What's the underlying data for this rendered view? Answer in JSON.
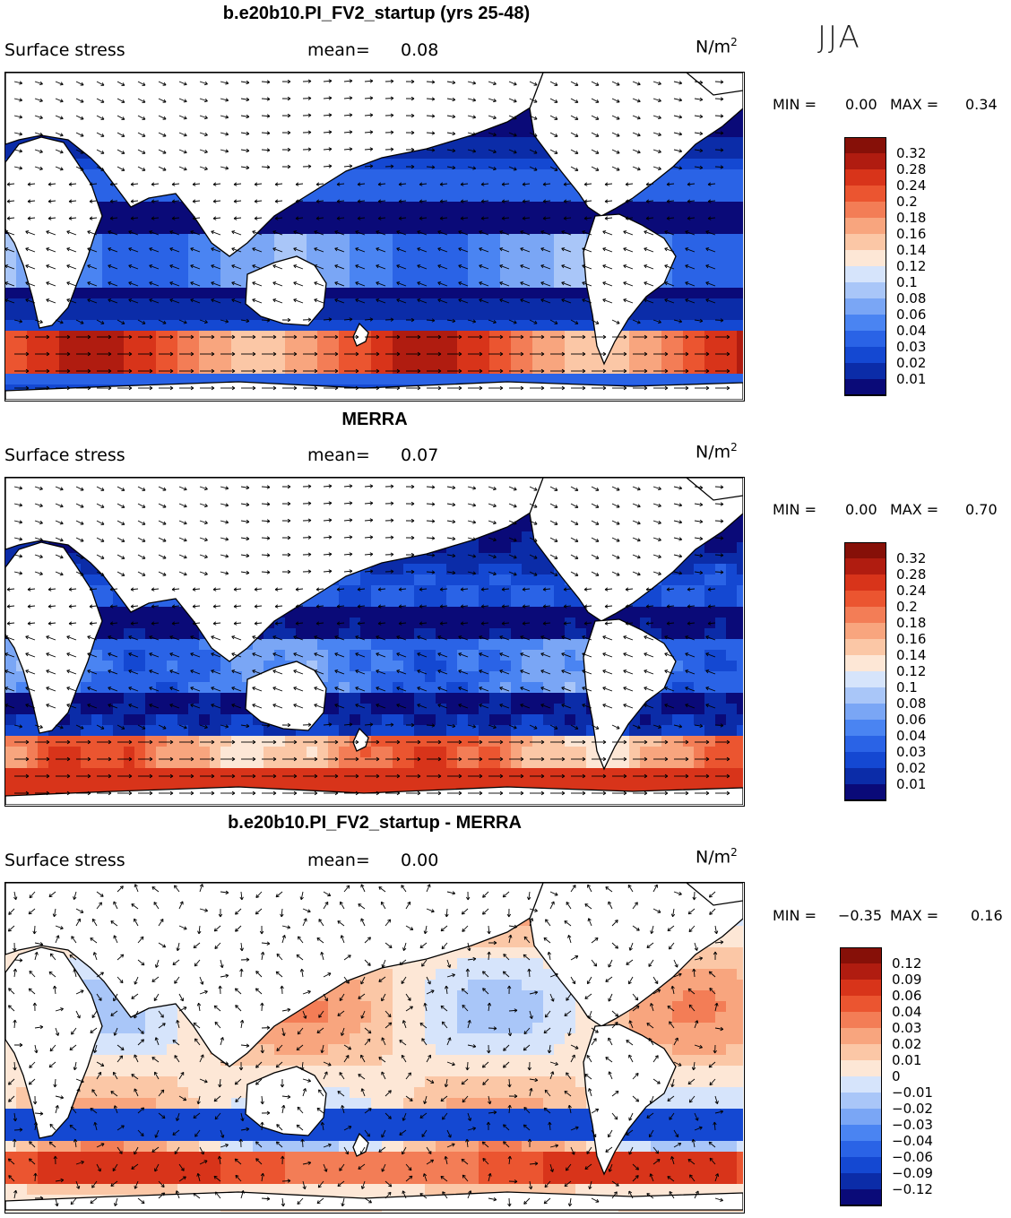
{
  "season": "JJA",
  "panels": [
    {
      "id": "model",
      "title": "b.e20b10.PI_FV2_startup (yrs 25-48)",
      "variable": "Surface stress",
      "mean_label": "mean=",
      "mean_value": "0.08",
      "units_base": "N/m",
      "units_exp": "2",
      "min_label": "MIN =",
      "min_value": "0.00",
      "max_label": "MAX =",
      "max_value": "0.34",
      "colorbar": {
        "colors": [
          "#0a0a78",
          "#0b2ca8",
          "#1448d2",
          "#2a63e6",
          "#4a84f2",
          "#7aa6f5",
          "#a9c6f8",
          "#d6e4fb",
          "#fde7d6",
          "#fbc7a6",
          "#f8a57e",
          "#f37d56",
          "#eb5530",
          "#d8341a",
          "#b01c10",
          "#861008"
        ],
        "labels": [
          "0.32",
          "0.28",
          "0.24",
          "0.2",
          "0.18",
          "0.16",
          "0.14",
          "0.12",
          "0.1",
          "0.08",
          "0.06",
          "0.04",
          "0.03",
          "0.02",
          "0.01"
        ]
      }
    },
    {
      "id": "obs",
      "title": "MERRA",
      "variable": "Surface stress",
      "mean_label": "mean=",
      "mean_value": "0.07",
      "units_base": "N/m",
      "units_exp": "2",
      "min_label": "MIN =",
      "min_value": "0.00",
      "max_label": "MAX =",
      "max_value": "0.70",
      "colorbar": {
        "colors": [
          "#0a0a78",
          "#0b2ca8",
          "#1448d2",
          "#2a63e6",
          "#4a84f2",
          "#7aa6f5",
          "#a9c6f8",
          "#d6e4fb",
          "#fde7d6",
          "#fbc7a6",
          "#f8a57e",
          "#f37d56",
          "#eb5530",
          "#d8341a",
          "#b01c10",
          "#861008"
        ],
        "labels": [
          "0.32",
          "0.28",
          "0.24",
          "0.2",
          "0.18",
          "0.16",
          "0.14",
          "0.12",
          "0.1",
          "0.08",
          "0.06",
          "0.04",
          "0.03",
          "0.02",
          "0.01"
        ]
      }
    },
    {
      "id": "diff",
      "title": "b.e20b10.PI_FV2_startup - MERRA",
      "variable": "Surface stress",
      "mean_label": "mean=",
      "mean_value": "0.00",
      "units_base": "N/m",
      "units_exp": "2",
      "min_label": "MIN =",
      "min_value": "−0.35",
      "max_label": "MAX =",
      "max_value": "0.16",
      "colorbar": {
        "colors": [
          "#0a0a78",
          "#0b2ca8",
          "#1448d2",
          "#2a63e6",
          "#4a84f2",
          "#7aa6f5",
          "#a9c6f8",
          "#d6e4fb",
          "#fde7d6",
          "#fbc7a6",
          "#f8a57e",
          "#f37d56",
          "#eb5530",
          "#d8341a",
          "#b01c10",
          "#861008"
        ],
        "labels": [
          "0.12",
          "0.09",
          "0.06",
          "0.04",
          "0.03",
          "0.02",
          "0.01",
          "0",
          "−0.01",
          "−0.02",
          "−0.03",
          "−0.04",
          "−0.06",
          "−0.09",
          "−0.12"
        ]
      }
    }
  ],
  "chart_data": [
    {
      "type": "heatmap",
      "title": "b.e20b10.PI_FV2_startup (yrs 25-48)",
      "subtitle": "Surface stress",
      "units": "N/m2",
      "mean": 0.08,
      "min": 0.0,
      "max": 0.34,
      "levels": [
        0.01,
        0.02,
        0.03,
        0.04,
        0.06,
        0.08,
        0.1,
        0.12,
        0.14,
        0.16,
        0.18,
        0.2,
        0.24,
        0.28,
        0.32
      ],
      "vectors": true
    },
    {
      "type": "heatmap",
      "title": "MERRA",
      "subtitle": "Surface stress",
      "units": "N/m2",
      "mean": 0.07,
      "min": 0.0,
      "max": 0.7,
      "levels": [
        0.01,
        0.02,
        0.03,
        0.04,
        0.06,
        0.08,
        0.1,
        0.12,
        0.14,
        0.16,
        0.18,
        0.2,
        0.24,
        0.28,
        0.32
      ],
      "vectors": true
    },
    {
      "type": "heatmap",
      "title": "b.e20b10.PI_FV2_startup - MERRA",
      "subtitle": "Surface stress",
      "units": "N/m2",
      "mean": 0.0,
      "min": -0.35,
      "max": 0.16,
      "levels": [
        -0.12,
        -0.09,
        -0.06,
        -0.04,
        -0.03,
        -0.02,
        -0.01,
        0,
        0.01,
        0.02,
        0.03,
        0.04,
        0.06,
        0.09,
        0.12
      ],
      "vectors": true
    }
  ]
}
